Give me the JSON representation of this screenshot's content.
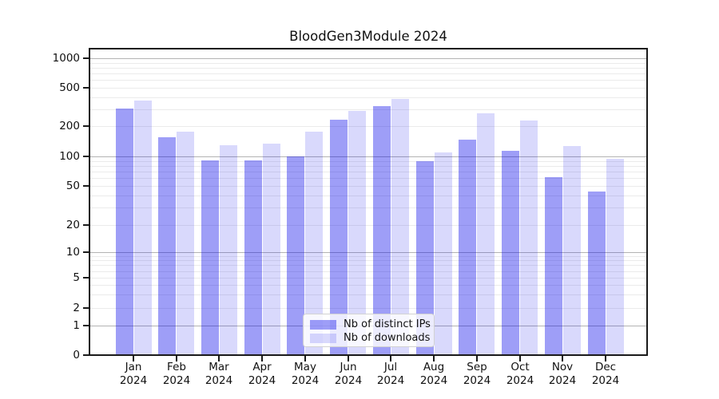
{
  "title": "BloodGen3Module 2024",
  "colors": {
    "bar_distinct_ips": "rgba(0,0,235,0.38)",
    "bar_downloads": "rgba(0,0,235,0.15)",
    "major_grid": "#b3b3b3",
    "minor_grid": "#ebebeb",
    "axis": "#1a1a1a",
    "text": "#111111"
  },
  "chart_data": {
    "type": "bar",
    "title": "BloodGen3Module 2024",
    "categories": [
      "Jan",
      "Feb",
      "Mar",
      "Apr",
      "May",
      "Jun",
      "Jul",
      "Aug",
      "Sep",
      "Oct",
      "Nov",
      "Dec"
    ],
    "category_year": "2024",
    "series": [
      {
        "name": "Nb of distinct IPs",
        "values": [
          300,
          152,
          90,
          90,
          99,
          229,
          316,
          88,
          144,
          112,
          60,
          43
        ]
      },
      {
        "name": "Nb of downloads",
        "values": [
          360,
          172,
          127,
          131,
          172,
          282,
          376,
          108,
          266,
          224,
          125,
          93
        ]
      }
    ],
    "yscale": "symlog",
    "ylim": [
      0,
      1100
    ],
    "yticks": [
      0,
      1,
      2,
      5,
      10,
      20,
      50,
      100,
      200,
      500,
      1000
    ],
    "major_gridlines": [
      1,
      10,
      100,
      1000
    ],
    "minor_gridlines": [
      2,
      3,
      4,
      5,
      6,
      7,
      8,
      9,
      20,
      30,
      40,
      50,
      60,
      70,
      80,
      90,
      200,
      300,
      400,
      500,
      600,
      700,
      800,
      900
    ],
    "grid": true,
    "legend_position": "lower center"
  },
  "legend": {
    "items": [
      {
        "label": "Nb of distinct IPs",
        "series": 0
      },
      {
        "label": "Nb of downloads",
        "series": 1
      }
    ]
  }
}
